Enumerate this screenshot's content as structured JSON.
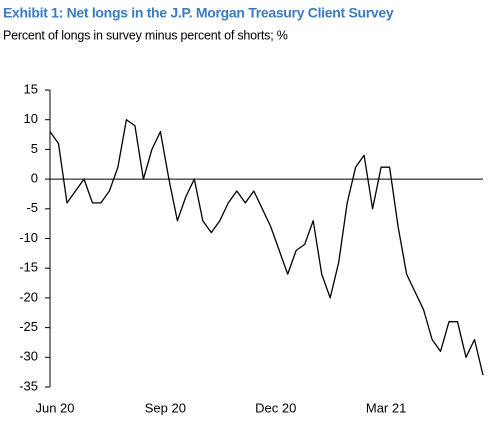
{
  "chart_data": {
    "type": "line",
    "title": "Exhibit 1: Net longs in the J.P. Morgan Treasury Client Survey",
    "subtitle": "Percent of longs in survey minus percent of shorts; %",
    "categories": [
      "Jun 20",
      null,
      null,
      null,
      null,
      null,
      null,
      null,
      null,
      null,
      null,
      null,
      null,
      "Sep 20",
      null,
      null,
      null,
      null,
      null,
      null,
      null,
      null,
      null,
      null,
      null,
      null,
      "Dec 20",
      null,
      null,
      null,
      null,
      null,
      null,
      null,
      null,
      null,
      null,
      null,
      null,
      "Mar 21",
      null,
      null,
      null,
      null,
      null,
      null,
      null,
      null,
      null,
      null,
      null,
      null
    ],
    "series": [
      {
        "name": "Net longs",
        "color": "#000000",
        "values": [
          8,
          6,
          -4,
          -2,
          0,
          -4,
          -4,
          -2,
          2,
          10,
          9,
          0,
          5,
          8,
          0,
          -7,
          -3,
          0,
          -7,
          -9,
          -7,
          -4,
          -2,
          -4,
          -2,
          -5,
          -8,
          -12,
          -16,
          -12,
          -11,
          -7,
          -16,
          -20,
          -14,
          -4,
          2,
          4,
          -5,
          2,
          2,
          -8,
          -16,
          -19,
          -22,
          -27,
          -29,
          -24,
          -24,
          -30,
          -27,
          -33
        ]
      }
    ],
    "ylim": [
      -35,
      15
    ],
    "yticks": [
      -35,
      -30,
      -25,
      -20,
      -15,
      -10,
      -5,
      0,
      5,
      10,
      15
    ]
  }
}
